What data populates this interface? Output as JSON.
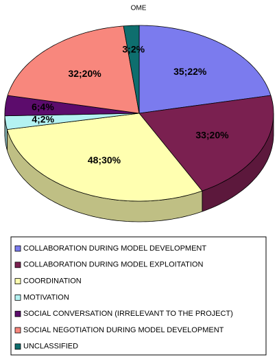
{
  "chart_data": {
    "type": "pie",
    "title": "OME",
    "categories": [
      "COLLABORATION DURING MODEL DEVELOPMENT",
      "COLLABORATION DURING MODEL EXPLOITATION",
      "COORDINATION",
      "MOTIVATION",
      "SOCIAL CONVERSATION (IRRELEVANT TO THE PROJECT)",
      "SOCIAL NEGOTIATION DURING MODEL DEVELOPMENT",
      "UNCLASSIFIED"
    ],
    "values": [
      35,
      33,
      48,
      4,
      6,
      32,
      3
    ],
    "value_labels": [
      "35;22%",
      "33;20%",
      "48;30%",
      "4;2%",
      "6;4%",
      "32;20%",
      "3;2%"
    ],
    "colors": [
      "#7b7bee",
      "#7a2050",
      "#ffffb0",
      "#b4f2f2",
      "#5c0c6c",
      "#f8877d",
      "#0e6e6e"
    ]
  }
}
